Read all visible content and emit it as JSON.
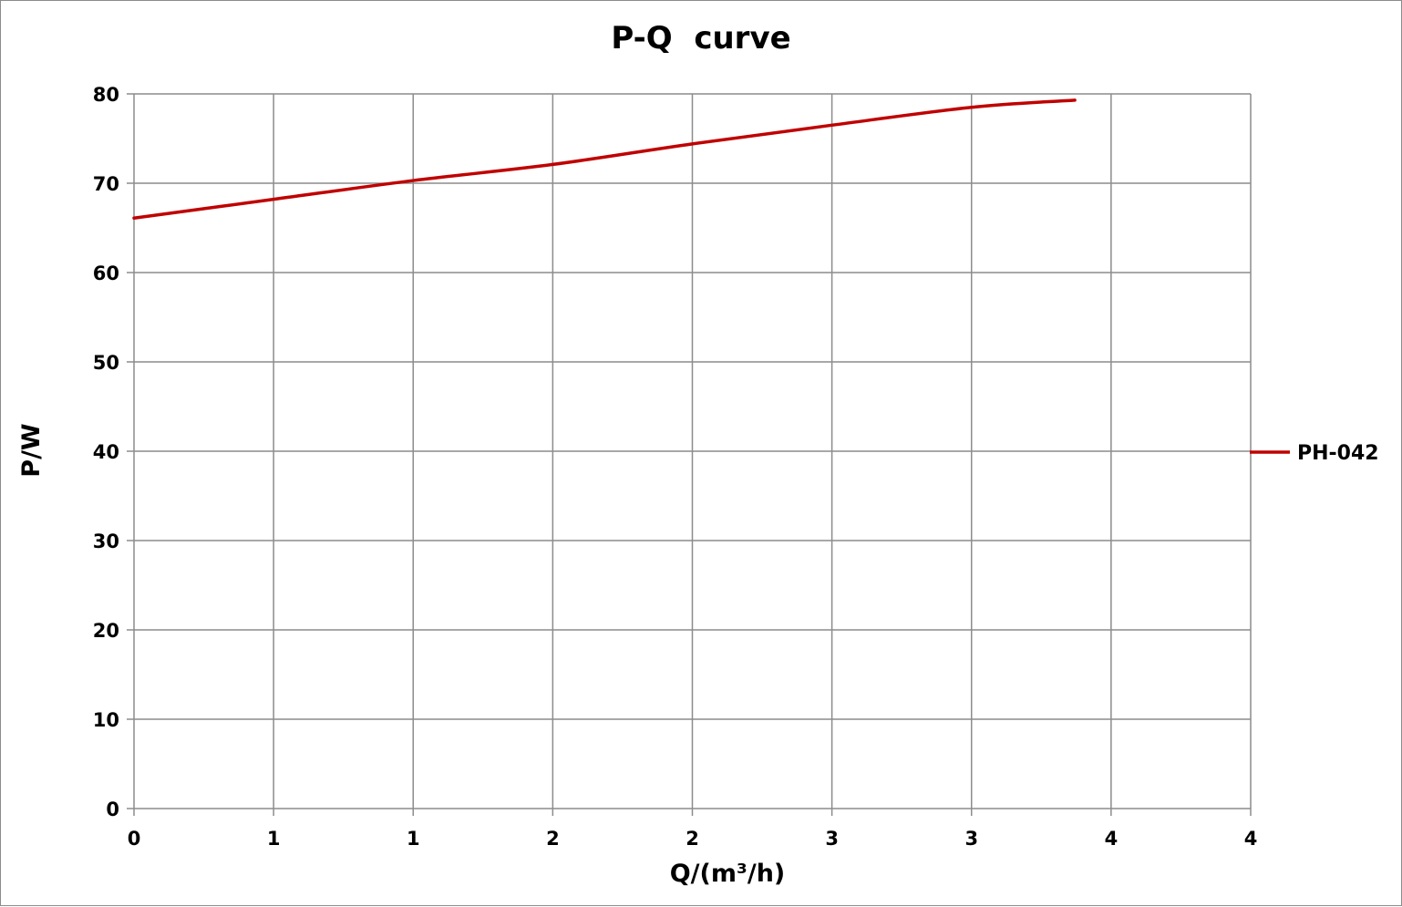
{
  "chart_data": {
    "type": "line",
    "title": "P-Q  curve",
    "xlabel": "Q/(m³/h)",
    "ylabel": "P/W",
    "xlim": [
      0,
      4
    ],
    "ylim": [
      0,
      80
    ],
    "x_tick_labels": [
      "0",
      "1",
      "1",
      "2",
      "2",
      "3",
      "3",
      "4",
      "4"
    ],
    "y_tick_labels": [
      "0",
      "10",
      "20",
      "30",
      "40",
      "50",
      "60",
      "70",
      "80"
    ],
    "grid": true,
    "legend_position": "right",
    "series": [
      {
        "name": "PH-042",
        "color": "#c00000",
        "x": [
          0,
          0.5,
          1.0,
          1.5,
          2.0,
          2.5,
          3.0,
          3.37
        ],
        "y": [
          66.1,
          68.2,
          70.3,
          72.1,
          74.4,
          76.5,
          78.5,
          79.3
        ]
      }
    ]
  }
}
